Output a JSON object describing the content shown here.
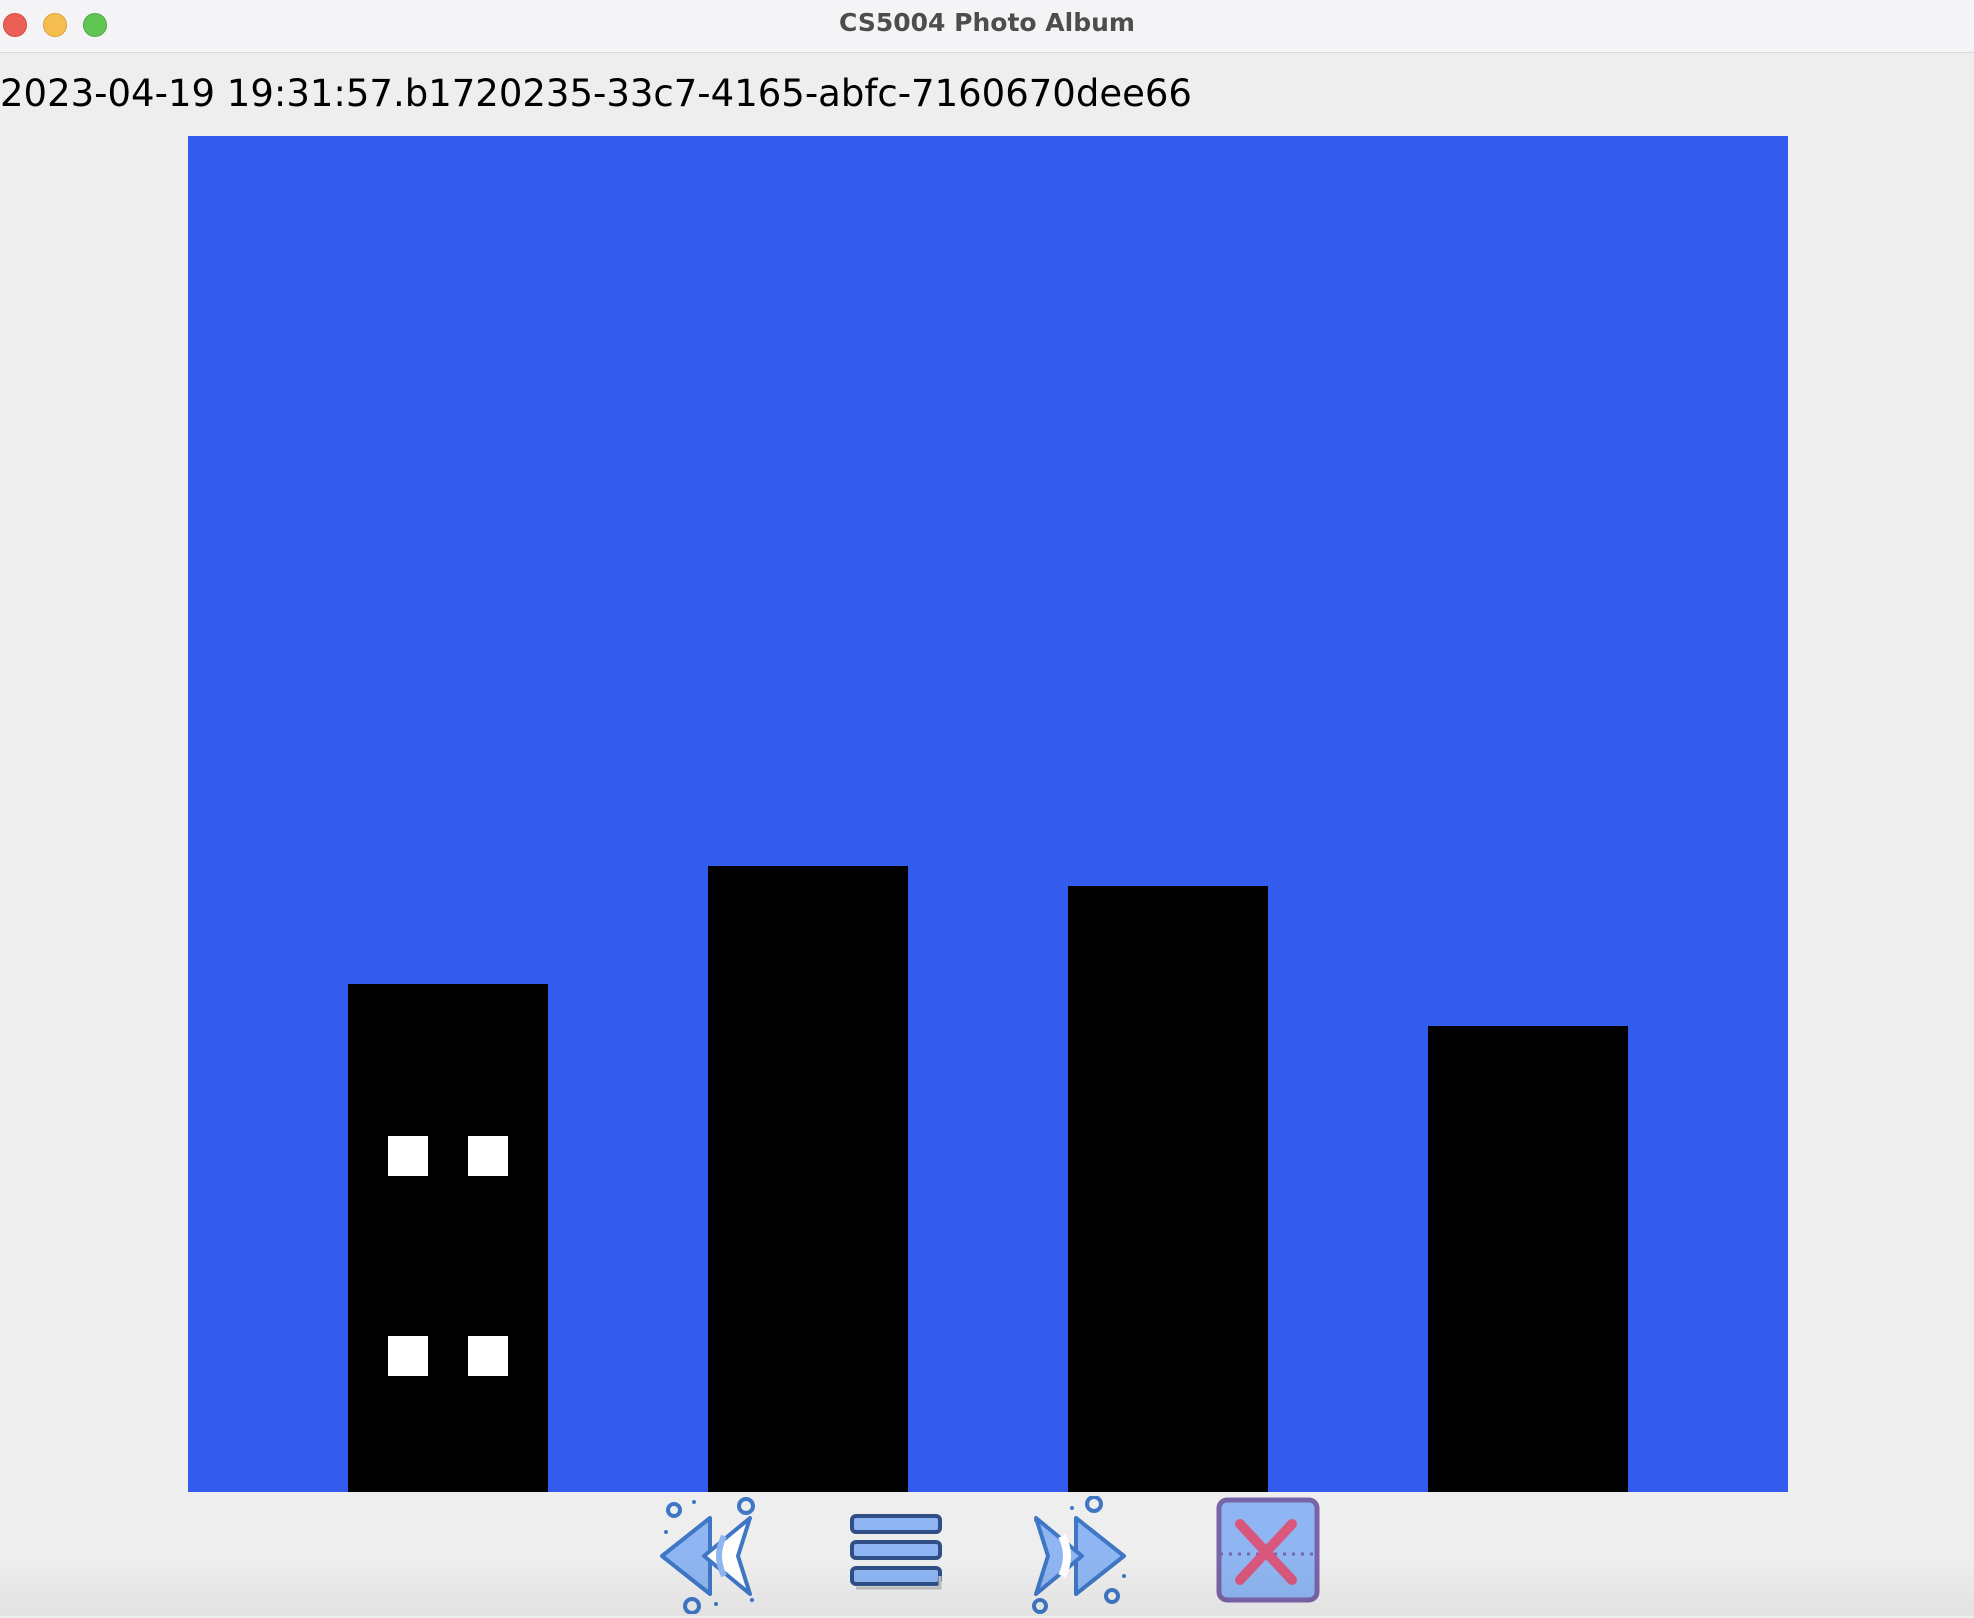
{
  "window": {
    "title": "CS5004 Photo Album",
    "controls": [
      "close",
      "minimize",
      "maximize"
    ]
  },
  "snapshot": {
    "id_label": "2023-04-19 19:31:57.b1720235-33c7-4165-abfc-7160670dee66"
  },
  "scene": {
    "background_color": "#335CED",
    "shapes": [
      {
        "kind": "rectangle",
        "color": "#000000",
        "role": "building"
      },
      {
        "kind": "rectangle",
        "color": "#000000",
        "role": "building"
      },
      {
        "kind": "rectangle",
        "color": "#000000",
        "role": "building"
      },
      {
        "kind": "rectangle",
        "color": "#000000",
        "role": "building"
      },
      {
        "kind": "rectangle",
        "color": "#FFFFFF",
        "role": "window"
      },
      {
        "kind": "rectangle",
        "color": "#FFFFFF",
        "role": "window"
      },
      {
        "kind": "rectangle",
        "color": "#FFFFFF",
        "role": "window"
      },
      {
        "kind": "rectangle",
        "color": "#FFFFFF",
        "role": "window"
      }
    ]
  },
  "toolbar": {
    "buttons": [
      {
        "icon": "rewind-icon",
        "action": "previous"
      },
      {
        "icon": "menu-icon",
        "action": "list"
      },
      {
        "icon": "fast-forward-icon",
        "action": "next"
      },
      {
        "icon": "close-x-icon",
        "action": "exit"
      }
    ],
    "accent_color": "#8FB6F2",
    "stroke_color": "#3F77C6",
    "exit_accent_color": "#D9577C"
  }
}
